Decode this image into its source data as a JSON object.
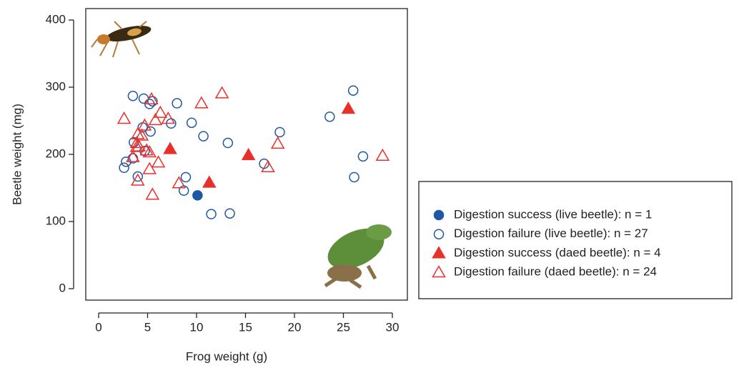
{
  "chart_data": {
    "type": "scatter",
    "xlabel": "Frog weight (g)",
    "ylabel": "Beetle weight (mg)",
    "xlim": [
      0,
      30
    ],
    "ylim": [
      0,
      400
    ],
    "xticks": [
      0,
      5,
      10,
      15,
      20,
      25,
      30
    ],
    "yticks": [
      0,
      100,
      200,
      300,
      400
    ],
    "series": [
      {
        "name": "Digestion success (live beetle): n = 1",
        "color": "#1f56a6",
        "marker": "circle",
        "filled": true,
        "x": [
          10.1
        ],
        "values": [
          139
        ]
      },
      {
        "name": "Digestion failure (live beetle): n = 27",
        "color": "#1f56a6",
        "marker": "circle",
        "filled": false,
        "x": [
          3.5,
          4.6,
          5.5,
          5.2,
          8.0,
          26.0,
          23.6,
          4.5,
          9.5,
          7.4,
          10.7,
          5.3,
          18.5,
          3.6,
          13.2,
          2.8,
          2.6,
          3.5,
          4.7,
          16.9,
          8.9,
          4.0,
          8.7,
          11.5,
          13.4,
          27.0,
          26.1
        ],
        "values": [
          287,
          283,
          279,
          275,
          276,
          295,
          256,
          240,
          247,
          246,
          227,
          234,
          233,
          218,
          217,
          189,
          180,
          194,
          205,
          186,
          166,
          167,
          146,
          111,
          112,
          197,
          166
        ]
      },
      {
        "name": "Digestion success (daed beetle): n = 4",
        "color": "#e8302a",
        "marker": "triangle",
        "filled": true,
        "x": [
          7.3,
          11.3,
          15.3,
          25.5
        ],
        "values": [
          208,
          158,
          199,
          268
        ]
      },
      {
        "name": "Digestion failure (daed beetle): n = 24",
        "color": "#e8302a",
        "marker": "triangle",
        "filled": false,
        "x": [
          12.6,
          10.5,
          2.6,
          5.4,
          6.3,
          7.1,
          5.8,
          4.7,
          4.0,
          3.9,
          3.9,
          4.1,
          3.5,
          5.2,
          6.1,
          5.2,
          4.0,
          5.5,
          8.2,
          18.3,
          17.3,
          29.0,
          4.9,
          4.4
        ],
        "values": [
          291,
          276,
          253,
          282,
          262,
          253,
          251,
          243,
          230,
          217,
          211,
          212,
          196,
          203,
          188,
          178,
          161,
          140,
          157,
          216,
          181,
          198,
          206,
          228
        ]
      }
    ]
  }
}
